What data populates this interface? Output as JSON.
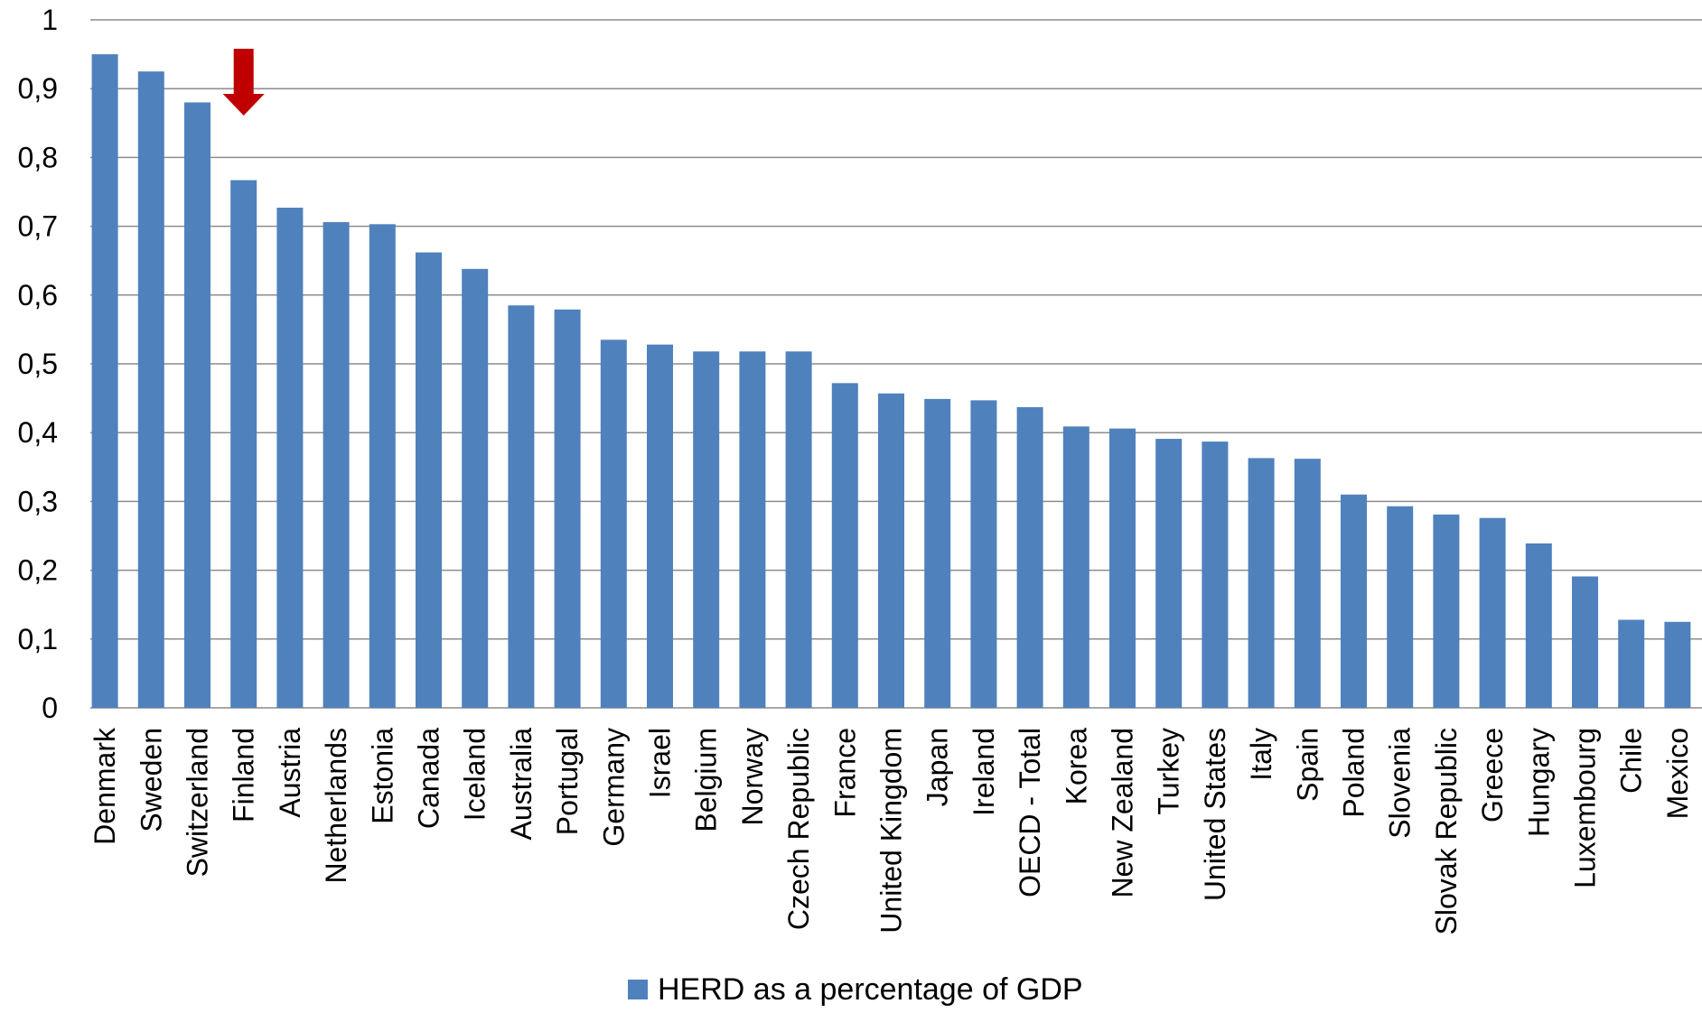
{
  "chart_data": {
    "type": "bar",
    "title": "",
    "xlabel": "",
    "ylabel": "",
    "ylim": [
      0,
      1
    ],
    "yticks": [
      0,
      0.1,
      0.2,
      0.3,
      0.4,
      0.5,
      0.6,
      0.7,
      0.8,
      0.9,
      1
    ],
    "ytick_labels": [
      "0",
      "0,1",
      "0,2",
      "0,3",
      "0,4",
      "0,5",
      "0,6",
      "0,7",
      "0,8",
      "0,9",
      "1"
    ],
    "grid": true,
    "legend_position": "bottom-center",
    "categories": [
      "Denmark",
      "Sweden",
      "Switzerland",
      "Finland",
      "Austria",
      "Netherlands",
      "Estonia",
      "Canada",
      "Iceland",
      "Australia",
      "Portugal",
      "Germany",
      "Israel",
      "Belgium",
      "Norway",
      "Czech Republic",
      "France",
      "United Kingdom",
      "Japan",
      "Ireland",
      "OECD - Total",
      "Korea",
      "New Zealand",
      "Turkey",
      "United States",
      "Italy",
      "Spain",
      "Poland",
      "Slovenia",
      "Slovak Republic",
      "Greece",
      "Hungary",
      "Luxembourg",
      "Chile",
      "Mexico"
    ],
    "series": [
      {
        "name": "HERD as a percentage of GDP",
        "color": "#4F81BD",
        "values": [
          0.95,
          0.925,
          0.88,
          0.767,
          0.727,
          0.706,
          0.703,
          0.662,
          0.638,
          0.585,
          0.579,
          0.535,
          0.528,
          0.518,
          0.518,
          0.518,
          0.472,
          0.457,
          0.449,
          0.447,
          0.437,
          0.409,
          0.406,
          0.391,
          0.387,
          0.363,
          0.362,
          0.31,
          0.293,
          0.281,
          0.276,
          0.239,
          0.191,
          0.128,
          0.125
        ]
      }
    ],
    "annotation": {
      "type": "arrow",
      "target_category": "Finland",
      "color": "#C00000"
    }
  }
}
